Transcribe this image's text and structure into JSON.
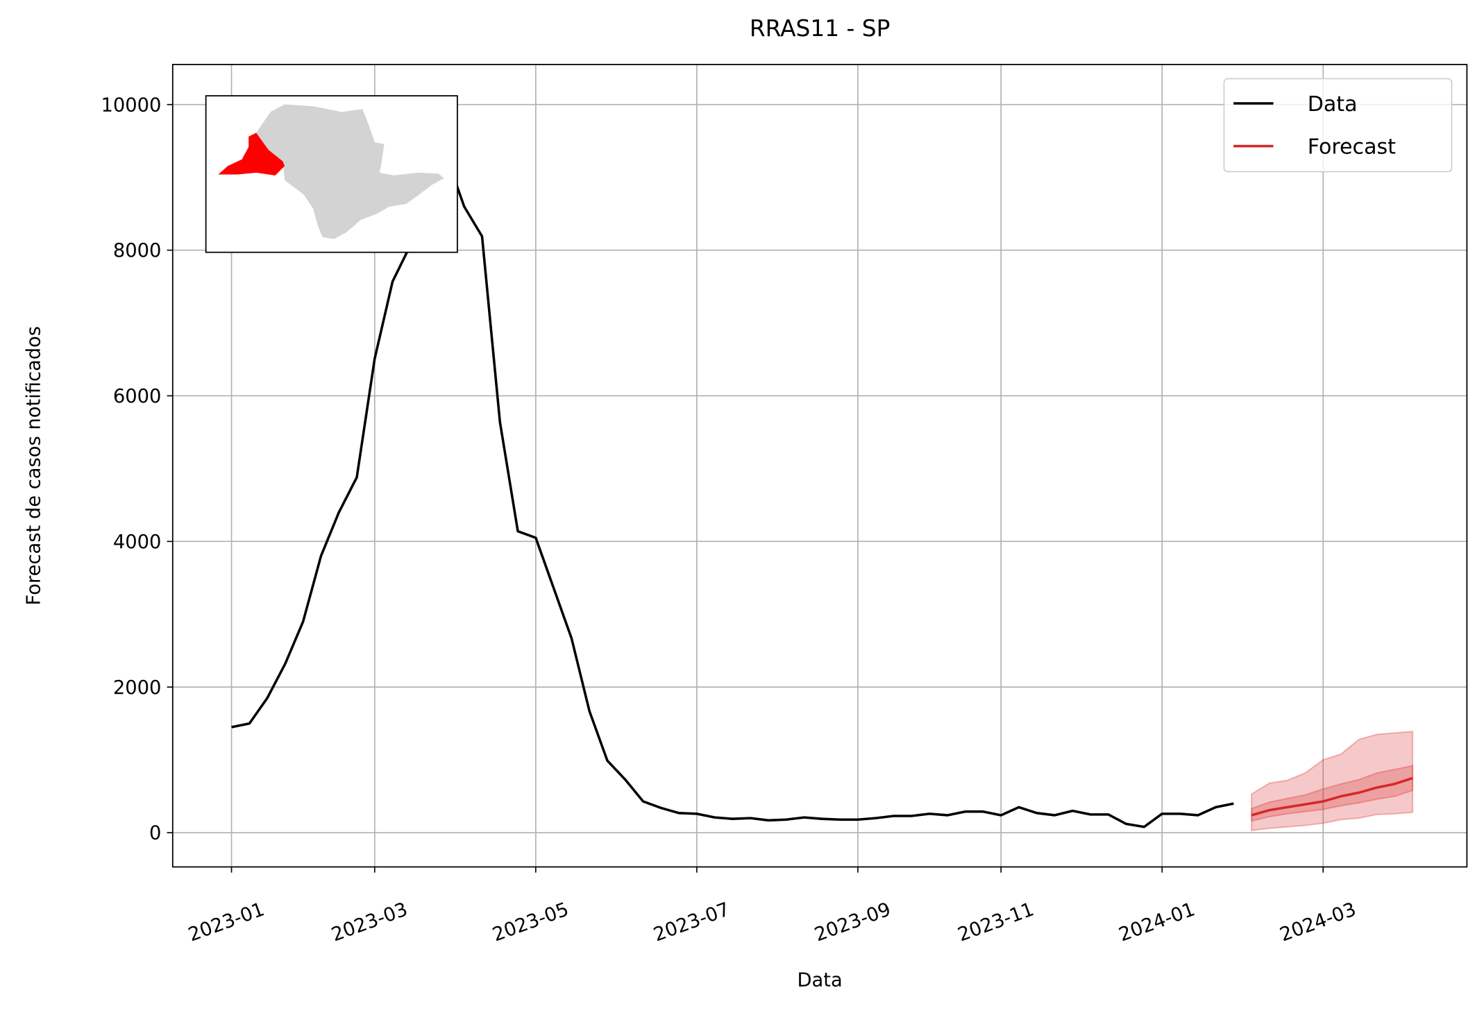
{
  "chart_data": {
    "type": "line",
    "title": "RRAS11 - SP",
    "xlabel": "Data",
    "ylabel": "Forecast de casos notificados",
    "categories": [
      "2023-01",
      null,
      null,
      null,
      null,
      null,
      null,
      null,
      "2023-03",
      null,
      null,
      null,
      null,
      null,
      null,
      null,
      null,
      "2023-05",
      null,
      null,
      null,
      null,
      null,
      null,
      null,
      null,
      "2023-07",
      null,
      null,
      null,
      null,
      null,
      null,
      null,
      null,
      "2023-09",
      null,
      null,
      null,
      null,
      null,
      null,
      null,
      "2023-11",
      null,
      null,
      null,
      null,
      null,
      null,
      null,
      null,
      "2024-01",
      null,
      null,
      null,
      null,
      null,
      null,
      null,
      null,
      "2024-03",
      null,
      null,
      null,
      null,
      null
    ],
    "series": [
      {
        "name": "Data",
        "color": "#000000",
        "values": [
          1450,
          1500,
          1850,
          2320,
          2900,
          3800,
          4400,
          4880,
          6510,
          7570,
          8070,
          8700,
          9300,
          8600,
          8190,
          5640,
          4140,
          4050,
          3360,
          2670,
          1670,
          990,
          730,
          430,
          340,
          270,
          260,
          210,
          190,
          200,
          170,
          180,
          210,
          190,
          180,
          180,
          200,
          230,
          230,
          260,
          240,
          290,
          290,
          240,
          350,
          270,
          240,
          300,
          250,
          250,
          120,
          80,
          260,
          260,
          240,
          350,
          400,
          null,
          null,
          null,
          null,
          null,
          null,
          null,
          null,
          null,
          null
        ]
      },
      {
        "name": "Forecast",
        "color": "#d62728",
        "values": [
          null,
          null,
          null,
          null,
          null,
          null,
          null,
          null,
          null,
          null,
          null,
          null,
          null,
          null,
          null,
          null,
          null,
          null,
          null,
          null,
          null,
          null,
          null,
          null,
          null,
          null,
          null,
          null,
          null,
          null,
          null,
          null,
          null,
          null,
          null,
          null,
          null,
          null,
          null,
          null,
          null,
          null,
          null,
          null,
          null,
          null,
          null,
          null,
          null,
          null,
          null,
          null,
          null,
          null,
          null,
          null,
          null,
          240,
          310,
          350,
          390,
          430,
          500,
          550,
          620,
          670,
          750
        ],
        "intervals": [
          {
            "lower": [
              null,
              null,
              null,
              null,
              null,
              null,
              null,
              null,
              null,
              null,
              null,
              null,
              null,
              null,
              null,
              null,
              null,
              null,
              null,
              null,
              null,
              null,
              null,
              null,
              null,
              null,
              null,
              null,
              null,
              null,
              null,
              null,
              null,
              null,
              null,
              null,
              null,
              null,
              null,
              null,
              null,
              null,
              null,
              null,
              null,
              null,
              null,
              null,
              null,
              null,
              null,
              null,
              null,
              null,
              null,
              null,
              null,
              30,
              60,
              80,
              100,
              130,
              180,
              200,
              250,
              260,
              280
            ],
            "upper": [
              null,
              null,
              null,
              null,
              null,
              null,
              null,
              null,
              null,
              null,
              null,
              null,
              null,
              null,
              null,
              null,
              null,
              null,
              null,
              null,
              null,
              null,
              null,
              null,
              null,
              null,
              null,
              null,
              null,
              null,
              null,
              null,
              null,
              null,
              null,
              null,
              null,
              null,
              null,
              null,
              null,
              null,
              null,
              null,
              null,
              null,
              null,
              null,
              null,
              null,
              null,
              null,
              null,
              null,
              null,
              null,
              null,
              530,
              680,
              720,
              820,
              1000,
              1080,
              1280,
              1350,
              1370,
              1390
            ]
          },
          {
            "lower": [
              null,
              null,
              null,
              null,
              null,
              null,
              null,
              null,
              null,
              null,
              null,
              null,
              null,
              null,
              null,
              null,
              null,
              null,
              null,
              null,
              null,
              null,
              null,
              null,
              null,
              null,
              null,
              null,
              null,
              null,
              null,
              null,
              null,
              null,
              null,
              null,
              null,
              null,
              null,
              null,
              null,
              null,
              null,
              null,
              null,
              null,
              null,
              null,
              null,
              null,
              null,
              null,
              null,
              null,
              null,
              null,
              null,
              160,
              220,
              260,
              290,
              320,
              370,
              410,
              460,
              500,
              580
            ],
            "upper": [
              null,
              null,
              null,
              null,
              null,
              null,
              null,
              null,
              null,
              null,
              null,
              null,
              null,
              null,
              null,
              null,
              null,
              null,
              null,
              null,
              null,
              null,
              null,
              null,
              null,
              null,
              null,
              null,
              null,
              null,
              null,
              null,
              null,
              null,
              null,
              null,
              null,
              null,
              null,
              null,
              null,
              null,
              null,
              null,
              null,
              null,
              null,
              null,
              null,
              null,
              null,
              null,
              null,
              null,
              null,
              null,
              null,
              330,
              420,
              470,
              520,
              600,
              670,
              730,
              820,
              870,
              920
            ]
          }
        ]
      }
    ],
    "ylim": [
      -470,
      10550
    ],
    "yticks": [
      0,
      2000,
      4000,
      6000,
      8000,
      10000
    ],
    "grid": true,
    "legend": "upper right"
  }
}
